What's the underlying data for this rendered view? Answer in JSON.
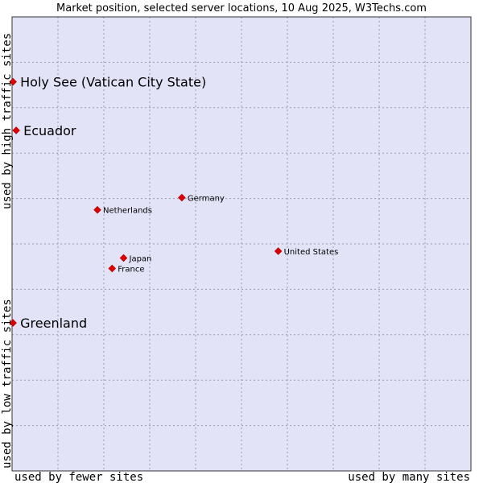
{
  "chart_data": {
    "type": "scatter",
    "title": "Market position, selected server locations, 10 Aug 2025, W3Techs.com",
    "xlabel_left": "used by fewer sites",
    "xlabel_right": "used by many sites",
    "ylabel_top": "used by high traffic sites",
    "ylabel_bottom": "used by low traffic sites",
    "xlim": [
      0,
      100
    ],
    "ylim": [
      0,
      100
    ],
    "grid": true,
    "colors": {
      "plot_background": "#e3e3f7",
      "grid": "#9a9ab4",
      "marker": "#e00000",
      "marker_edge": "#b00000"
    },
    "points": [
      {
        "label": "Holy See (Vatican City State)",
        "x": 0.2,
        "y": 85.7,
        "emphasis": true
      },
      {
        "label": "Ecuador",
        "x": 0.9,
        "y": 75.0,
        "emphasis": true
      },
      {
        "label": "Germany",
        "x": 37.0,
        "y": 60.2,
        "emphasis": false
      },
      {
        "label": "Netherlands",
        "x": 18.6,
        "y": 57.5,
        "emphasis": false
      },
      {
        "label": "United States",
        "x": 58.0,
        "y": 48.4,
        "emphasis": false
      },
      {
        "label": "Japan",
        "x": 24.3,
        "y": 46.9,
        "emphasis": false
      },
      {
        "label": "France",
        "x": 21.8,
        "y": 44.6,
        "emphasis": false
      },
      {
        "label": "Greenland",
        "x": 0.2,
        "y": 32.6,
        "emphasis": true
      }
    ]
  }
}
